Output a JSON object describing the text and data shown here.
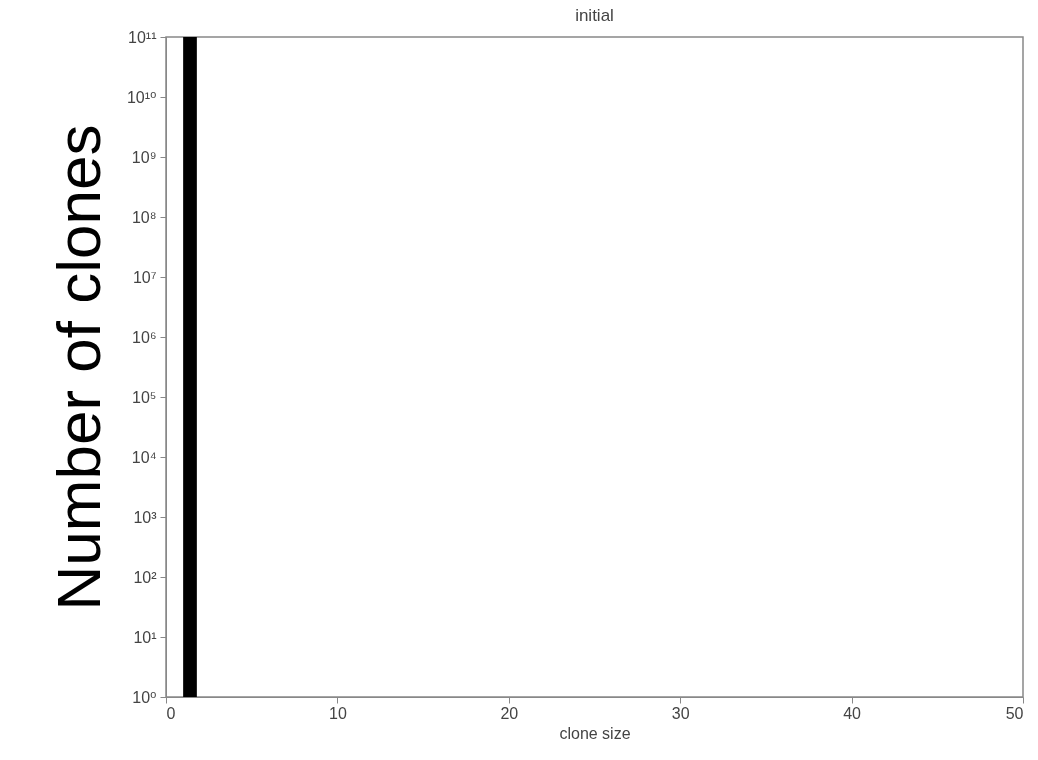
{
  "chart_data": {
    "type": "histogram",
    "title": "initial",
    "xlabel": "clone size",
    "ylabel": "Number of clones",
    "bins": [
      1,
      1.8
    ],
    "values": [
      100000000000
    ],
    "color": "#000000",
    "log": "y",
    "grid": false,
    "xlim": [
      0,
      50
    ],
    "xticks": [
      0,
      10,
      20,
      30,
      40,
      50
    ],
    "ylim": [
      1,
      100000000000
    ],
    "yticks": [
      {
        "value": 1,
        "label": "10⁰"
      },
      {
        "value": 10,
        "label": "10¹"
      },
      {
        "value": 100,
        "label": "10²"
      },
      {
        "value": 1000,
        "label": "10³"
      },
      {
        "value": 10000,
        "label": "10⁴"
      },
      {
        "value": 100000,
        "label": "10⁵"
      },
      {
        "value": 1000000,
        "label": "10⁶"
      },
      {
        "value": 10000000,
        "label": "10⁷"
      },
      {
        "value": 100000000,
        "label": "10⁸"
      },
      {
        "value": 1000000000,
        "label": "10⁹"
      },
      {
        "value": 10000000000,
        "label": "10¹⁰"
      },
      {
        "value": 100000000000,
        "label": "10¹¹"
      }
    ]
  }
}
